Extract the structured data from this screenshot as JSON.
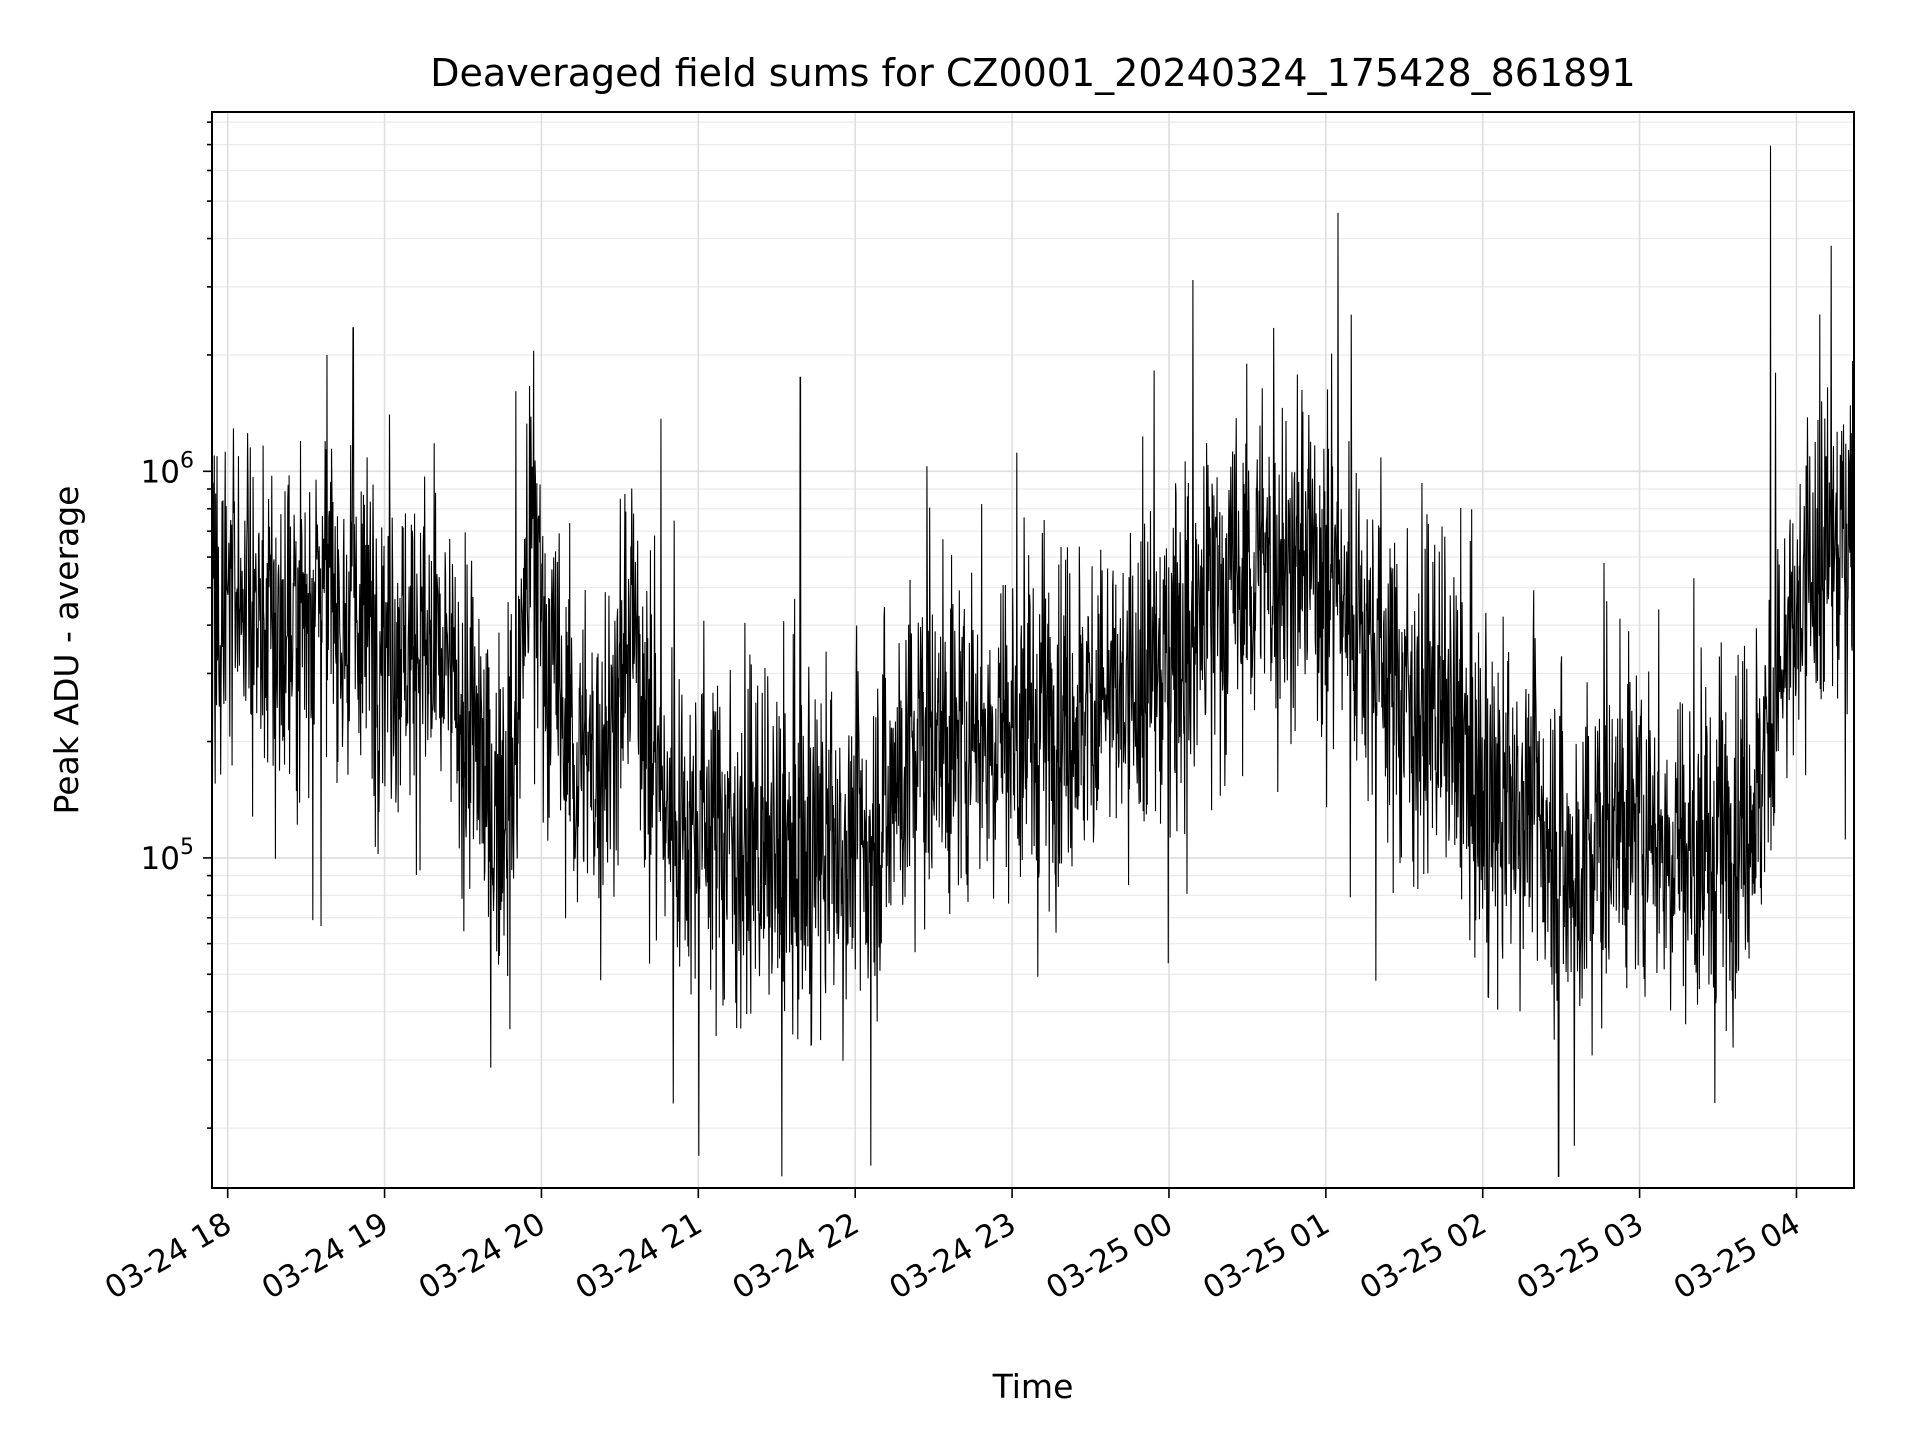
{
  "chart_data": {
    "type": "line",
    "title": "Deaveraged field sums for CZ0001_20240324_175428_861891",
    "xlabel": "Time",
    "ylabel": "Peak ADU - average",
    "yscale": "log",
    "grid": true,
    "line_color": "#000000",
    "x_range": [
      "2024-03-24 17:54",
      "2024-03-25 04:22"
    ],
    "ylim": [
      14000,
      8500000
    ],
    "x_tick_labels": [
      "03-24 18",
      "03-24 19",
      "03-24 20",
      "03-24 21",
      "03-24 22",
      "03-24 23",
      "03-25 00",
      "03-25 01",
      "03-25 02",
      "03-25 03",
      "03-25 04"
    ],
    "y_tick_labels": [
      {
        "base": "10",
        "exp": "5",
        "value": 100000
      },
      {
        "base": "10",
        "exp": "6",
        "value": 1000000
      }
    ],
    "series": [
      {
        "points": [
          [
            "2024-03-24 17:55",
            420000
          ],
          [
            "2024-03-24 18:05",
            520000
          ],
          [
            "2024-03-24 18:15",
            380000
          ],
          [
            "2024-03-24 18:25",
            400000
          ],
          [
            "2024-03-24 18:35",
            550000
          ],
          [
            "2024-03-24 18:45",
            420000
          ],
          [
            "2024-03-24 18:55",
            400000
          ],
          [
            "2024-03-24 19:05",
            380000
          ],
          [
            "2024-03-24 19:15",
            350000
          ],
          [
            "2024-03-24 19:25",
            280000
          ],
          [
            "2024-03-24 19:35",
            200000
          ],
          [
            "2024-03-24 19:42",
            120000
          ],
          [
            "2024-03-24 19:50",
            200000
          ],
          [
            "2024-03-24 19:55",
            650000
          ],
          [
            "2024-03-24 20:05",
            280000
          ],
          [
            "2024-03-24 20:15",
            160000
          ],
          [
            "2024-03-24 20:25",
            200000
          ],
          [
            "2024-03-24 20:35",
            400000
          ],
          [
            "2024-03-24 20:45",
            150000
          ],
          [
            "2024-03-24 20:55",
            120000
          ],
          [
            "2024-03-24 21:05",
            130000
          ],
          [
            "2024-03-24 21:15",
            110000
          ],
          [
            "2024-03-24 21:25",
            100000
          ],
          [
            "2024-03-24 21:35",
            90000
          ],
          [
            "2024-03-24 21:45",
            100000
          ],
          [
            "2024-03-24 21:55",
            110000
          ],
          [
            "2024-03-24 22:05",
            110000
          ],
          [
            "2024-03-24 22:15",
            160000
          ],
          [
            "2024-03-24 22:25",
            200000
          ],
          [
            "2024-03-24 22:35",
            200000
          ],
          [
            "2024-03-24 22:45",
            220000
          ],
          [
            "2024-03-24 22:55",
            220000
          ],
          [
            "2024-03-24 23:05",
            220000
          ],
          [
            "2024-03-24 23:15",
            220000
          ],
          [
            "2024-03-24 23:25",
            240000
          ],
          [
            "2024-03-24 23:35",
            260000
          ],
          [
            "2024-03-24 23:45",
            240000
          ],
          [
            "2024-03-24 23:55",
            300000
          ],
          [
            "2024-03-25 00:05",
            380000
          ],
          [
            "2024-03-25 00:15",
            450000
          ],
          [
            "2024-03-25 00:25",
            500000
          ],
          [
            "2024-03-25 00:35",
            550000
          ],
          [
            "2024-03-25 00:45",
            600000
          ],
          [
            "2024-03-25 00:55",
            600000
          ],
          [
            "2024-03-25 01:05",
            500000
          ],
          [
            "2024-03-25 01:15",
            400000
          ],
          [
            "2024-03-25 01:25",
            300000
          ],
          [
            "2024-03-25 01:35",
            250000
          ],
          [
            "2024-03-25 01:45",
            230000
          ],
          [
            "2024-03-25 01:55",
            160000
          ],
          [
            "2024-03-25 02:05",
            120000
          ],
          [
            "2024-03-25 02:15",
            150000
          ],
          [
            "2024-03-25 02:25",
            120000
          ],
          [
            "2024-03-25 02:35",
            90000
          ],
          [
            "2024-03-25 02:45",
            110000
          ],
          [
            "2024-03-25 02:55",
            130000
          ],
          [
            "2024-03-25 03:05",
            120000
          ],
          [
            "2024-03-25 03:15",
            110000
          ],
          [
            "2024-03-25 03:25",
            100000
          ],
          [
            "2024-03-25 03:35",
            110000
          ],
          [
            "2024-03-25 03:45",
            150000
          ],
          [
            "2024-03-25 03:55",
            300000
          ],
          [
            "2024-03-25 04:05",
            500000
          ],
          [
            "2024-03-25 04:15",
            650000
          ],
          [
            "2024-03-25 04:22",
            750000
          ]
        ],
        "spikes": [
          [
            "2024-03-24 18:48",
            2350000
          ],
          [
            "2024-03-24 19:57",
            2050000
          ],
          [
            "2024-03-24 21:39",
            1750000
          ],
          [
            "2024-03-25 00:40",
            2350000
          ],
          [
            "2024-03-25 03:50",
            6950000
          ],
          [
            "2024-03-25 03:52",
            1800000
          ],
          [
            "2024-03-24 21:32",
            15000
          ],
          [
            "2024-03-24 22:06",
            16000
          ],
          [
            "2024-03-25 02:29",
            15000
          ],
          [
            "2024-03-25 02:35",
            18000
          ]
        ]
      }
    ]
  }
}
